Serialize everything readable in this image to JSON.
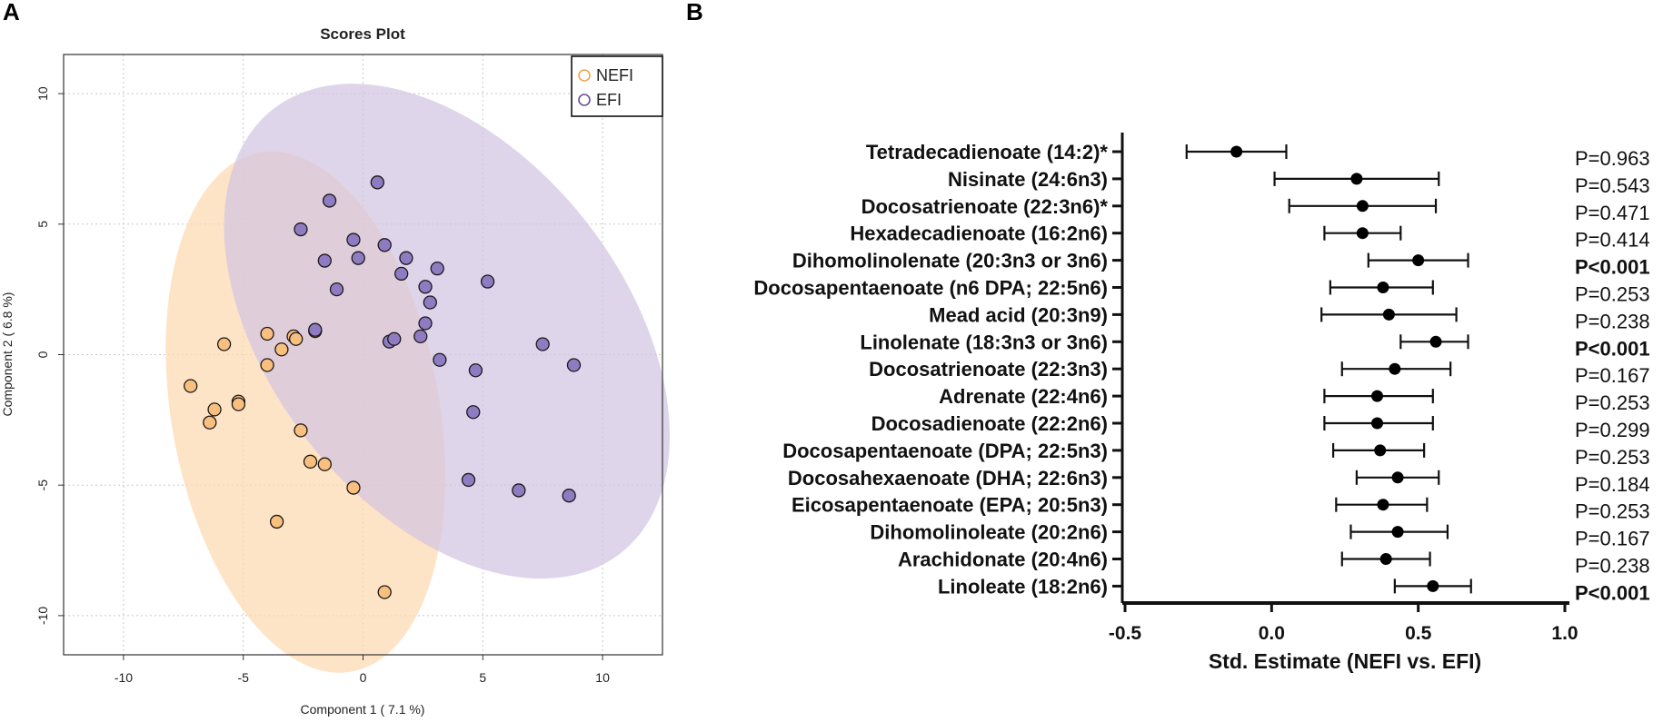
{
  "chart_data": [
    {
      "panel_label": "A",
      "type": "scatter",
      "title": "Scores Plot",
      "xlabel": "Component 1 ( 7.1 %)",
      "ylabel": "Component 2 ( 6.8 %)",
      "xlim": [
        -12.5,
        12.5
      ],
      "ylim": [
        -11.5,
        11.5
      ],
      "xticks": [
        -10,
        -5,
        0,
        5,
        10
      ],
      "yticks": [
        -10,
        -5,
        0,
        5,
        10
      ],
      "grid": true,
      "legend_position": "top-right",
      "series": [
        {
          "name": "NEFI",
          "color": "#f0a64c",
          "fill": "#f9bf7e",
          "ellipse_fill": "#fdd9b2",
          "ellipse": {
            "cx": -2.4,
            "cy": -2.2,
            "rx": 5.6,
            "ry": 10.1,
            "angle": -10
          },
          "points": [
            {
              "x": -7.2,
              "y": -1.2
            },
            {
              "x": -6.4,
              "y": -2.6
            },
            {
              "x": -6.2,
              "y": -2.1
            },
            {
              "x": -5.8,
              "y": 0.4
            },
            {
              "x": -5.2,
              "y": -1.8
            },
            {
              "x": -5.2,
              "y": -1.9
            },
            {
              "x": -4.0,
              "y": 0.8
            },
            {
              "x": -4.0,
              "y": -0.4
            },
            {
              "x": -3.6,
              "y": -6.4
            },
            {
              "x": -3.4,
              "y": 0.2
            },
            {
              "x": -2.9,
              "y": 0.7
            },
            {
              "x": -2.8,
              "y": 0.6
            },
            {
              "x": -2.6,
              "y": -2.9
            },
            {
              "x": -2.2,
              "y": -4.1
            },
            {
              "x": -2.0,
              "y": 0.9
            },
            {
              "x": -1.6,
              "y": -4.2
            },
            {
              "x": -0.4,
              "y": -5.1
            },
            {
              "x": 0.9,
              "y": -9.1
            }
          ]
        },
        {
          "name": "EFI",
          "color": "#6a4e9c",
          "fill": "#8e7bc2",
          "ellipse_fill": "#d3c5e2",
          "ellipse": {
            "cx": 3.5,
            "cy": 0.9,
            "rx": 7.4,
            "ry": 10.8,
            "angle": -38
          },
          "points": [
            {
              "x": -2.6,
              "y": 4.8
            },
            {
              "x": -1.4,
              "y": 5.9
            },
            {
              "x": -1.6,
              "y": 3.6
            },
            {
              "x": -1.1,
              "y": 2.5
            },
            {
              "x": -0.4,
              "y": 4.4
            },
            {
              "x": -0.2,
              "y": 3.7
            },
            {
              "x": 0.6,
              "y": 6.6
            },
            {
              "x": 0.9,
              "y": 4.2
            },
            {
              "x": 1.1,
              "y": 0.5
            },
            {
              "x": 1.3,
              "y": 0.6
            },
            {
              "x": 1.6,
              "y": 3.1
            },
            {
              "x": 1.8,
              "y": 3.7
            },
            {
              "x": 2.4,
              "y": 0.7
            },
            {
              "x": 2.6,
              "y": 2.6
            },
            {
              "x": 2.6,
              "y": 1.2
            },
            {
              "x": 2.8,
              "y": 2.0
            },
            {
              "x": 3.1,
              "y": 3.3
            },
            {
              "x": 3.2,
              "y": -0.2
            },
            {
              "x": 4.4,
              "y": -4.8
            },
            {
              "x": 4.6,
              "y": -2.2
            },
            {
              "x": 4.7,
              "y": -0.6
            },
            {
              "x": 5.2,
              "y": 2.8
            },
            {
              "x": 6.5,
              "y": -5.2
            },
            {
              "x": 7.5,
              "y": 0.4
            },
            {
              "x": 8.6,
              "y": -5.4
            },
            {
              "x": 8.8,
              "y": -0.4
            },
            {
              "x": -2.0,
              "y": 0.95
            }
          ]
        }
      ]
    },
    {
      "panel_label": "B",
      "type": "forest",
      "xlabel": "Std. Estimate (NEFI vs. EFI)",
      "xlim": [
        -0.5,
        1.0
      ],
      "xticks": [
        {
          "value": -0.5,
          "label": "-0.5"
        },
        {
          "value": 0.0,
          "label": "0.0"
        },
        {
          "value": 0.5,
          "label": "0.5"
        },
        {
          "value": 1.0,
          "label": "1.0"
        }
      ],
      "rows": [
        {
          "label": "Tetradecadienoate (14:2)*",
          "estimate": -0.12,
          "lower": -0.29,
          "upper": 0.05,
          "p": "P=0.963",
          "bold": false
        },
        {
          "label": "Nisinate (24:6n3)",
          "estimate": 0.29,
          "lower": 0.01,
          "upper": 0.57,
          "p": "P=0.543",
          "bold": false
        },
        {
          "label": "Docosatrienoate (22:3n6)*",
          "estimate": 0.31,
          "lower": 0.06,
          "upper": 0.56,
          "p": "P=0.471",
          "bold": false
        },
        {
          "label": "Hexadecadienoate (16:2n6)",
          "estimate": 0.31,
          "lower": 0.18,
          "upper": 0.44,
          "p": "P=0.414",
          "bold": false
        },
        {
          "label": "Dihomolinolenate (20:3n3 or 3n6)",
          "estimate": 0.5,
          "lower": 0.33,
          "upper": 0.67,
          "p": "P<0.001",
          "bold": true
        },
        {
          "label": "Docosapentaenoate (n6 DPA; 22:5n6)",
          "estimate": 0.38,
          "lower": 0.2,
          "upper": 0.55,
          "p": "P=0.253",
          "bold": false
        },
        {
          "label": "Mead acid (20:3n9)",
          "estimate": 0.4,
          "lower": 0.17,
          "upper": 0.63,
          "p": "P=0.238",
          "bold": false
        },
        {
          "label": "Linolenate (18:3n3 or 3n6)",
          "estimate": 0.56,
          "lower": 0.44,
          "upper": 0.67,
          "p": "P<0.001",
          "bold": true
        },
        {
          "label": "Docosatrienoate (22:3n3)",
          "estimate": 0.42,
          "lower": 0.24,
          "upper": 0.61,
          "p": "P=0.167",
          "bold": false
        },
        {
          "label": "Adrenate (22:4n6)",
          "estimate": 0.36,
          "lower": 0.18,
          "upper": 0.55,
          "p": "P=0.253",
          "bold": false
        },
        {
          "label": "Docosadienoate (22:2n6)",
          "estimate": 0.36,
          "lower": 0.18,
          "upper": 0.55,
          "p": "P=0.299",
          "bold": false
        },
        {
          "label": "Docosapentaenoate (DPA; 22:5n3)",
          "estimate": 0.37,
          "lower": 0.21,
          "upper": 0.52,
          "p": "P=0.253",
          "bold": false
        },
        {
          "label": "Docosahexaenoate (DHA; 22:6n3)",
          "estimate": 0.43,
          "lower": 0.29,
          "upper": 0.57,
          "p": "P=0.184",
          "bold": false
        },
        {
          "label": "Eicosapentaenoate (EPA; 20:5n3)",
          "estimate": 0.38,
          "lower": 0.22,
          "upper": 0.53,
          "p": "P=0.253",
          "bold": false
        },
        {
          "label": "Dihomolinoleate (20:2n6)",
          "estimate": 0.43,
          "lower": 0.27,
          "upper": 0.6,
          "p": "P=0.167",
          "bold": false
        },
        {
          "label": "Arachidonate (20:4n6)",
          "estimate": 0.39,
          "lower": 0.24,
          "upper": 0.54,
          "p": "P=0.238",
          "bold": false
        },
        {
          "label": "Linoleate (18:2n6)",
          "estimate": 0.55,
          "lower": 0.42,
          "upper": 0.68,
          "p": "P<0.001",
          "bold": true
        }
      ]
    }
  ]
}
